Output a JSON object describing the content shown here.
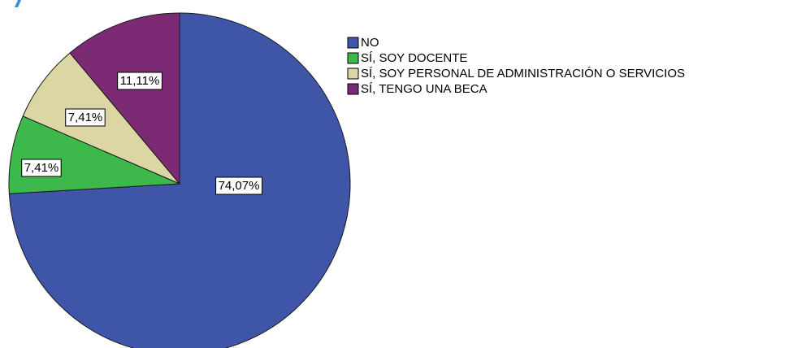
{
  "chart_data": {
    "type": "pie",
    "title": "",
    "categories": [
      "NO",
      "SÍ, SOY DOCENTE",
      "SÍ, SOY PERSONAL DE ADMINISTRACIÓN O SERVICIOS",
      "SÍ, TENGO UNA BECA"
    ],
    "values": [
      74.07,
      7.41,
      7.41,
      11.11
    ],
    "value_labels": [
      "74,07%",
      "7,41%",
      "7,41%",
      "11,11%"
    ],
    "colors": [
      "#3f55a8",
      "#3cb94a",
      "#dbd6a3",
      "#7c2a73"
    ],
    "start_angle_deg": 0,
    "direction": "clockwise",
    "legend_position": "right"
  }
}
